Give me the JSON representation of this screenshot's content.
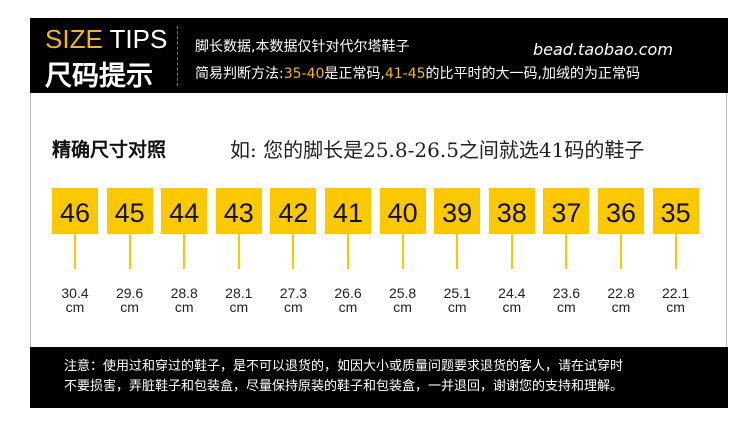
{
  "header": {
    "brand_en_highlight": "SIZE",
    "brand_en_rest": " TIPS",
    "brand_cn": "尺码提示",
    "line1": "脚长数据,本数据仅针对代尔塔鞋子",
    "line2_a": "简易判断方法:",
    "line2_b": "35-40",
    "line2_c": "是正常码,",
    "line2_d": "41-45",
    "line2_e": "的比平时的大一码,加绒的为正常码",
    "url": "bead.taobao.com",
    "accent": "#f3b61a"
  },
  "main": {
    "title": "精确尺寸对照",
    "example": "如: 您的脚长是25.8-26.5之间就选41码的鞋子",
    "box_color": "#fcc800",
    "sizes": [
      {
        "size": "46",
        "length": "30.4",
        "unit": "cm"
      },
      {
        "size": "45",
        "length": "29.6",
        "unit": "cm"
      },
      {
        "size": "44",
        "length": "28.8",
        "unit": "cm"
      },
      {
        "size": "43",
        "length": "28.1",
        "unit": "cm"
      },
      {
        "size": "42",
        "length": "27.3",
        "unit": "cm"
      },
      {
        "size": "41",
        "length": "26.6",
        "unit": "cm"
      },
      {
        "size": "40",
        "length": "25.8",
        "unit": "cm"
      },
      {
        "size": "39",
        "length": "25.1",
        "unit": "cm"
      },
      {
        "size": "38",
        "length": "24.4",
        "unit": "cm"
      },
      {
        "size": "37",
        "length": "23.6",
        "unit": "cm"
      },
      {
        "size": "36",
        "length": "22.8",
        "unit": "cm"
      },
      {
        "size": "35",
        "length": "22.1",
        "unit": "cm"
      }
    ]
  },
  "footer": {
    "line1": "注意：使用过和穿过的鞋子，是不可以退货的，如因大小或质量问题要求退货的客人，请在试穿时",
    "line2": "不要损害，弄脏鞋子和包装盒，尽量保持原装的鞋子和包装盒，一并退回，谢谢您的支持和理解。"
  }
}
